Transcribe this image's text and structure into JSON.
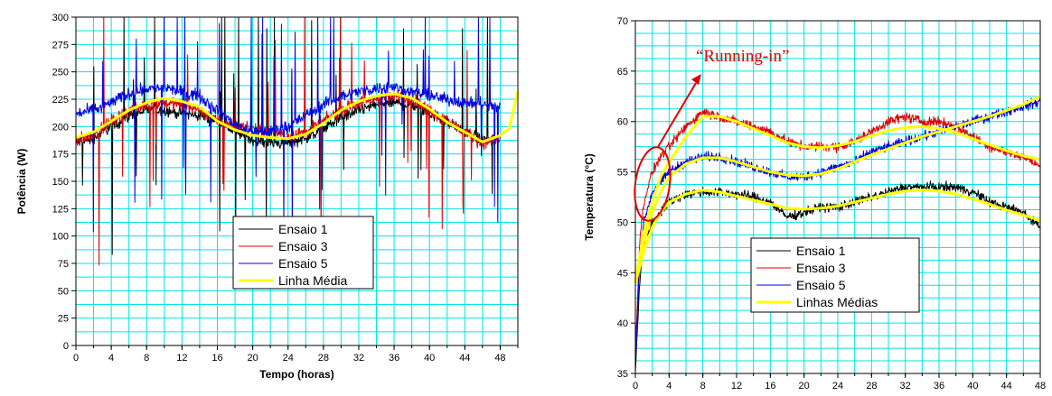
{
  "chart_data": [
    {
      "type": "line",
      "xlabel": "Tempo (horas)",
      "ylabel": "Potência (W)",
      "xlim": [
        0,
        50
      ],
      "ylim": [
        0,
        300
      ],
      "xticks": [
        0,
        4,
        8,
        12,
        16,
        20,
        24,
        28,
        32,
        36,
        40,
        44,
        48
      ],
      "yticks": [
        0,
        25,
        50,
        75,
        100,
        125,
        150,
        175,
        200,
        225,
        250,
        275,
        300
      ],
      "grid": true,
      "legend": "bottom-right",
      "series": [
        {
          "name": "Ensaio 1",
          "color": "#000000",
          "x": [
            0,
            2,
            4,
            6,
            8,
            10,
            12,
            14,
            16,
            18,
            20,
            22,
            24,
            26,
            28,
            30,
            32,
            34,
            36,
            38,
            40,
            42,
            44,
            46,
            48
          ],
          "y": [
            185,
            190,
            200,
            210,
            215,
            215,
            212,
            210,
            205,
            195,
            188,
            185,
            185,
            190,
            198,
            208,
            215,
            220,
            222,
            220,
            212,
            205,
            195,
            188,
            190
          ]
        },
        {
          "name": "Ensaio 3",
          "color": "#e00000",
          "x": [
            0,
            2,
            4,
            6,
            8,
            10,
            12,
            14,
            16,
            18,
            20,
            22,
            24,
            26,
            28,
            30,
            32,
            34,
            36,
            38,
            40,
            42,
            44,
            46,
            48
          ],
          "y": [
            188,
            192,
            205,
            215,
            220,
            222,
            220,
            215,
            205,
            200,
            198,
            195,
            192,
            195,
            205,
            215,
            222,
            225,
            228,
            225,
            215,
            205,
            195,
            185,
            188
          ]
        },
        {
          "name": "Ensaio 5",
          "color": "#0000e0",
          "x": [
            0,
            2,
            4,
            6,
            8,
            10,
            12,
            14,
            16,
            18,
            20,
            22,
            24,
            26,
            28,
            30,
            32,
            34,
            36,
            38,
            40,
            42,
            44,
            46,
            48
          ],
          "y": [
            212,
            215,
            222,
            230,
            235,
            235,
            232,
            228,
            215,
            202,
            195,
            195,
            200,
            210,
            220,
            228,
            232,
            235,
            236,
            232,
            228,
            225,
            222,
            220,
            218
          ]
        },
        {
          "name": "Linha Média",
          "color": "#ffff00",
          "x": [
            0,
            2,
            4,
            6,
            8,
            10,
            12,
            14,
            16,
            18,
            20,
            22,
            24,
            26,
            28,
            30,
            32,
            34,
            36,
            38,
            40,
            42,
            44,
            46,
            48,
            49,
            50
          ],
          "y": [
            190,
            195,
            205,
            215,
            222,
            226,
            223,
            218,
            205,
            197,
            192,
            190,
            189,
            193,
            203,
            215,
            223,
            228,
            230,
            226,
            216,
            204,
            195,
            186,
            192,
            198,
            232
          ]
        }
      ]
    },
    {
      "type": "line",
      "xlabel": "Tempo (horas)",
      "ylabel": "Temperatura (°C)",
      "xlim": [
        0,
        48
      ],
      "ylim": [
        35,
        70
      ],
      "xticks": [
        0,
        4,
        8,
        12,
        16,
        20,
        24,
        28,
        32,
        36,
        40,
        44,
        48
      ],
      "yticks": [
        35,
        40,
        45,
        50,
        55,
        60,
        65,
        70
      ],
      "grid": true,
      "legend": "bottom-center",
      "annotation": "“Running-in”",
      "series": [
        {
          "name": "Ensaio 1",
          "color": "#000000",
          "x": [
            0,
            0.5,
            1,
            2,
            3,
            4,
            6,
            8,
            10,
            12,
            14,
            16,
            18,
            20,
            22,
            24,
            26,
            28,
            30,
            32,
            34,
            36,
            38,
            40,
            42,
            44,
            46,
            48
          ],
          "y": [
            35,
            44,
            48,
            50,
            51,
            52,
            52.8,
            53,
            53,
            52.8,
            52.5,
            52,
            50.5,
            51,
            51.5,
            51.5,
            52,
            52.5,
            53,
            53.5,
            53.5,
            53.5,
            53.5,
            53,
            52,
            51.5,
            51,
            49.5
          ]
        },
        {
          "name": "Ensaio 3",
          "color": "#e00000",
          "x": [
            0,
            0.5,
            1,
            2,
            3,
            4,
            6,
            8,
            10,
            12,
            14,
            16,
            18,
            20,
            22,
            24,
            26,
            28,
            30,
            32,
            34,
            36,
            38,
            40,
            42,
            44,
            46,
            48
          ],
          "y": [
            37,
            48,
            52,
            55,
            56.5,
            57.5,
            59.5,
            61,
            60.5,
            60,
            59.5,
            59,
            58,
            57.5,
            57.5,
            57.5,
            58,
            59,
            60,
            60.5,
            60,
            60,
            59.5,
            58.5,
            57.5,
            57,
            56.5,
            55.5
          ]
        },
        {
          "name": "Ensaio 5",
          "color": "#0000e0",
          "x": [
            0,
            0.5,
            1,
            2,
            3,
            4,
            6,
            8,
            10,
            12,
            14,
            16,
            18,
            20,
            22,
            24,
            26,
            28,
            30,
            32,
            34,
            36,
            38,
            40,
            42,
            44,
            46,
            48
          ],
          "y": [
            36,
            46,
            50,
            53,
            54,
            55,
            56,
            56.5,
            56.5,
            56,
            55.5,
            55,
            54.5,
            54.5,
            55,
            55.5,
            56,
            57,
            57.5,
            58,
            58.5,
            59,
            59.5,
            60,
            60.5,
            61,
            61.5,
            62
          ]
        },
        {
          "name": "Linhas Médias",
          "color": "#ffff00",
          "x": [
            0,
            1,
            2,
            3,
            4,
            6,
            8,
            10,
            12,
            14,
            16,
            18,
            20,
            22,
            24,
            26,
            28,
            30,
            32,
            34,
            36,
            38,
            40,
            42,
            44,
            46,
            48
          ],
          "y": [
            44,
            47,
            49.5,
            51,
            52,
            52.8,
            53.2,
            53,
            52.6,
            52.2,
            51.8,
            51.4,
            51.3,
            51.4,
            51.6,
            52,
            52.4,
            52.8,
            53.1,
            53.2,
            53.1,
            52.8,
            52.3,
            51.8,
            51.2,
            50.7,
            50.2
          ]
        },
        {
          "name": "",
          "color": "#ffff00",
          "x": [
            0,
            1,
            2,
            3,
            4,
            6,
            8,
            10,
            12,
            14,
            16,
            18,
            20,
            22,
            24,
            26,
            28,
            30,
            32,
            34,
            36,
            38,
            40,
            42,
            44,
            46,
            48
          ],
          "y": [
            44,
            49,
            52,
            54.5,
            56,
            58.5,
            60.5,
            60.5,
            60,
            59.3,
            58.6,
            57.9,
            57.5,
            57.4,
            57.6,
            58,
            58.6,
            59.1,
            59.4,
            59.5,
            59.3,
            58.9,
            58.3,
            57.7,
            57.1,
            56.6,
            56.2
          ]
        },
        {
          "name": "",
          "color": "#ffff00",
          "x": [
            0,
            1,
            2,
            3,
            4,
            6,
            8,
            10,
            12,
            14,
            16,
            18,
            20,
            22,
            24,
            26,
            28,
            30,
            32,
            34,
            36,
            38,
            40,
            42,
            44,
            46,
            48
          ],
          "y": [
            44,
            48,
            51,
            53,
            54.5,
            55.8,
            56.4,
            56.4,
            56,
            55.5,
            55,
            54.7,
            54.6,
            54.8,
            55.3,
            56,
            56.7,
            57.3,
            57.9,
            58.5,
            59,
            59.5,
            60,
            60.5,
            61.1,
            61.7,
            62.5
          ]
        }
      ]
    }
  ]
}
